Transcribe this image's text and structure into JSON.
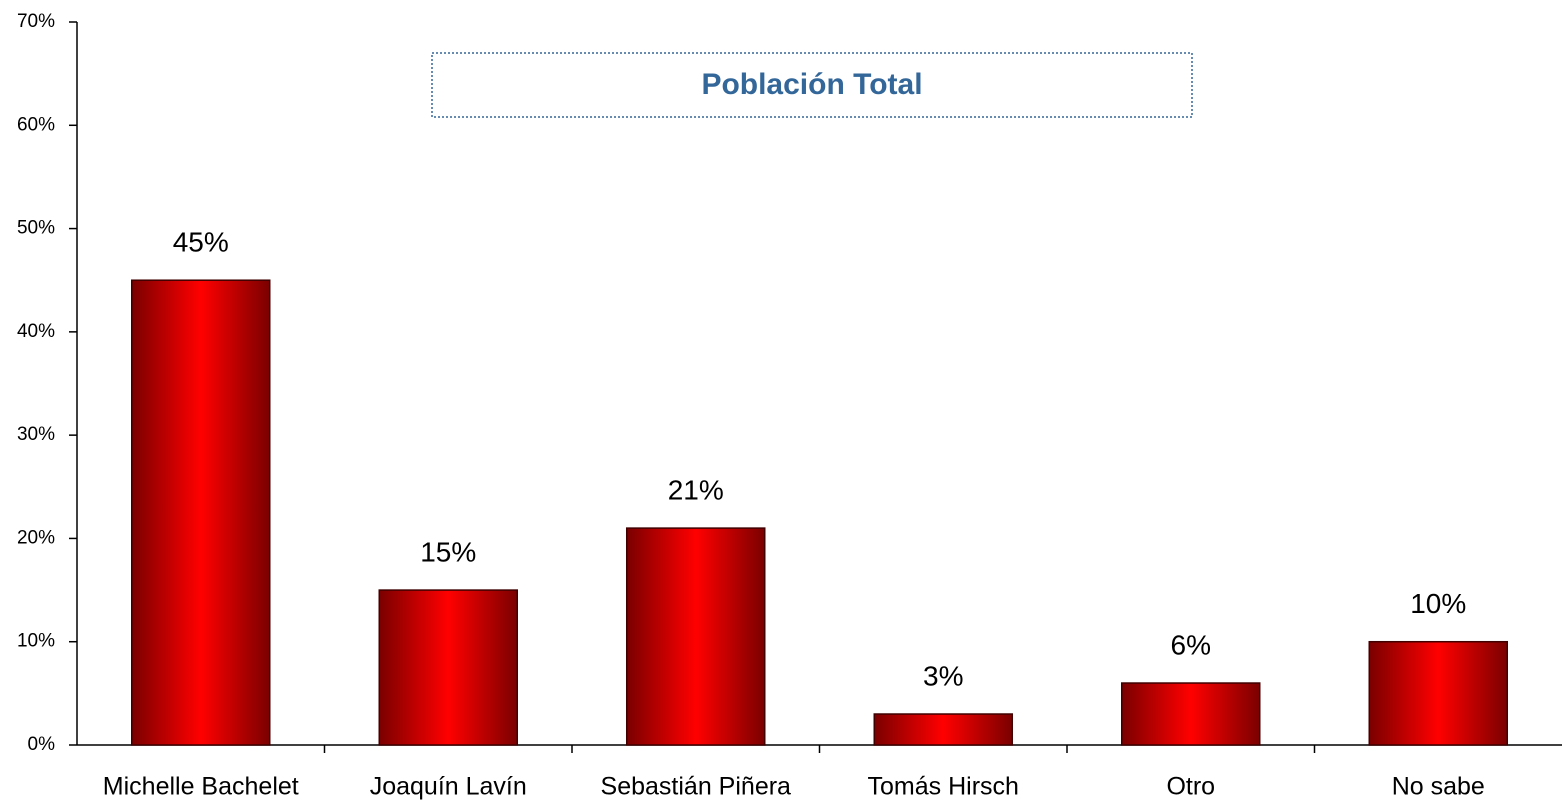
{
  "chart_data": {
    "type": "bar",
    "title": "Población Total",
    "categories": [
      "Michelle Bachelet",
      "Joaquín Lavín",
      "Sebastián Piñera",
      "Tomás Hirsch",
      "Otro",
      "No sabe"
    ],
    "values": [
      45,
      15,
      21,
      3,
      6,
      10
    ],
    "value_labels": [
      "45%",
      "15%",
      "21%",
      "3%",
      "6%",
      "10%"
    ],
    "color": "#ff0000",
    "ylim": [
      0,
      70
    ],
    "yticks": [
      {
        "value": 0,
        "label": "0%"
      },
      {
        "value": 10,
        "label": "10%"
      },
      {
        "value": 20,
        "label": "20%"
      },
      {
        "value": 30,
        "label": "30%"
      },
      {
        "value": 40,
        "label": "40%"
      },
      {
        "value": 50,
        "label": "50%"
      },
      {
        "value": 60,
        "label": "60%"
      },
      {
        "value": 70,
        "label": "70%"
      }
    ],
    "grid": false
  }
}
